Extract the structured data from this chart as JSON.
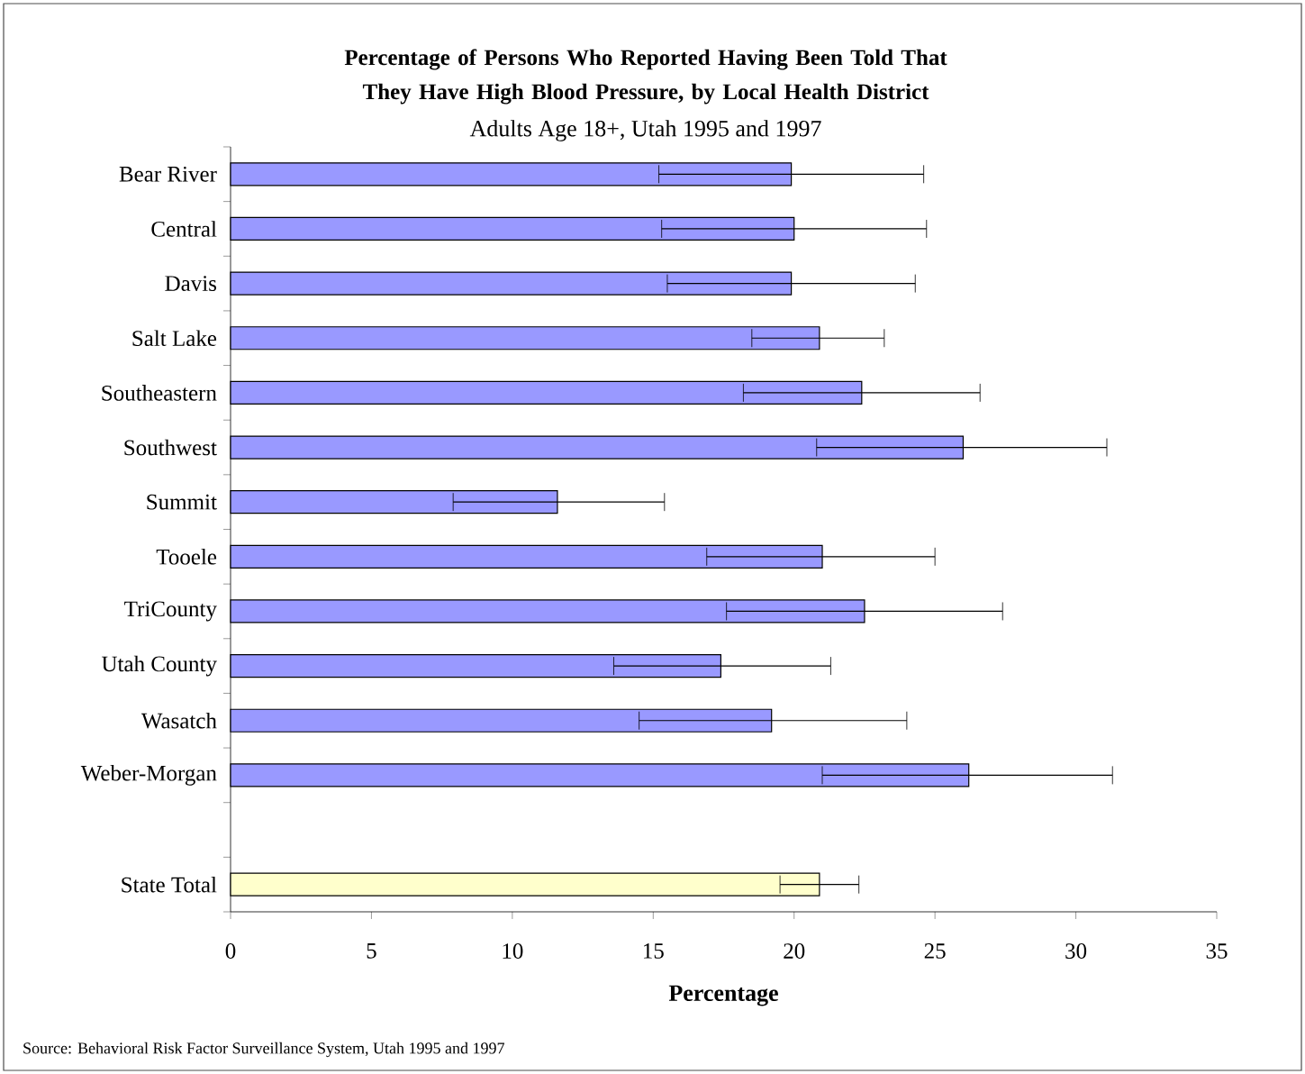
{
  "chart_data": {
    "type": "bar",
    "orientation": "horizontal",
    "title": "Percentage of Persons Who Reported Having Been Told That They Have High Blood Pressure, by Local Health District",
    "subtitle": "Adults Age 18+, Utah 1995 and 1997",
    "xlabel": "Percentage",
    "annotations": [
      "Source: Behavioral Risk Factor Surveillance System, Utah 1995 and 1997"
    ],
    "categories": [
      "Bear River",
      "Central",
      "Davis",
      "Salt Lake",
      "Southeastern",
      "Southwest",
      "Summit",
      "Tooele",
      "TriCounty",
      "Utah County",
      "Wasatch",
      "Weber-Morgan",
      null,
      "State Total"
    ],
    "values": [
      19.9,
      20.0,
      19.9,
      20.9,
      22.4,
      26.0,
      11.6,
      21.0,
      22.5,
      17.4,
      19.2,
      26.2,
      null,
      20.9
    ],
    "errors": [
      [
        15.2,
        24.6
      ],
      [
        15.3,
        24.7
      ],
      [
        15.5,
        24.3
      ],
      [
        18.5,
        23.2
      ],
      [
        18.2,
        26.6
      ],
      [
        20.8,
        31.1
      ],
      [
        7.9,
        15.4
      ],
      [
        16.9,
        25.0
      ],
      [
        17.6,
        27.4
      ],
      [
        13.6,
        21.3
      ],
      [
        14.5,
        24.0
      ],
      [
        21.0,
        31.3
      ],
      null,
      [
        19.5,
        22.3
      ]
    ],
    "colors": [
      "#9999ff",
      "#9999ff",
      "#9999ff",
      "#9999ff",
      "#9999ff",
      "#9999ff",
      "#9999ff",
      "#9999ff",
      "#9999ff",
      "#9999ff",
      "#9999ff",
      "#9999ff",
      "#9999ff",
      "#ffffcc"
    ],
    "xlim": [
      0,
      35
    ],
    "xticks": [
      0,
      5,
      10,
      15,
      20,
      25,
      30,
      35
    ]
  }
}
